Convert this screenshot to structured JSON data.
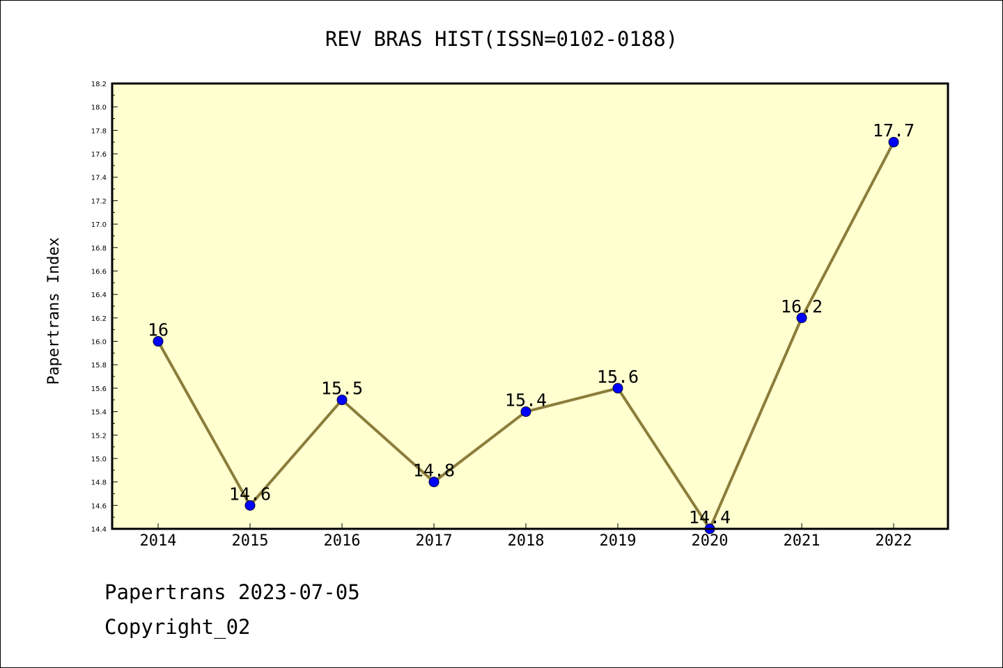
{
  "chart_data": {
    "type": "line",
    "title": "REV BRAS HIST(ISSN=0102-0188)",
    "ylabel": "Papertrans Index",
    "xlabel": "",
    "categories": [
      "2014",
      "2015",
      "2016",
      "2017",
      "2018",
      "2019",
      "2020",
      "2021",
      "2022"
    ],
    "values": [
      16,
      14.6,
      15.5,
      14.8,
      15.4,
      15.6,
      14.4,
      16.2,
      17.7
    ],
    "data_labels": [
      "16",
      "14.6",
      "15.5",
      "14.8",
      "15.4",
      "15.6",
      "14.4",
      "16.2",
      "17.7"
    ],
    "ylim": [
      14.4,
      18.2
    ],
    "yticks": [
      "14.4",
      "14.6",
      "14.8",
      "15.0",
      "15.2",
      "15.4",
      "15.6",
      "15.8",
      "16.0",
      "16.2",
      "16.4",
      "16.6",
      "16.8",
      "17.0",
      "17.2",
      "17.4",
      "17.6",
      "17.8",
      "18.0",
      "18.2"
    ],
    "grid": false,
    "colors": {
      "plot_bg": "#ffffd0",
      "line": "#8b7d3a",
      "marker": "#0000ff"
    }
  },
  "footer": {
    "line1": "Papertrans 2023-07-05",
    "line2": "Copyright_02"
  }
}
